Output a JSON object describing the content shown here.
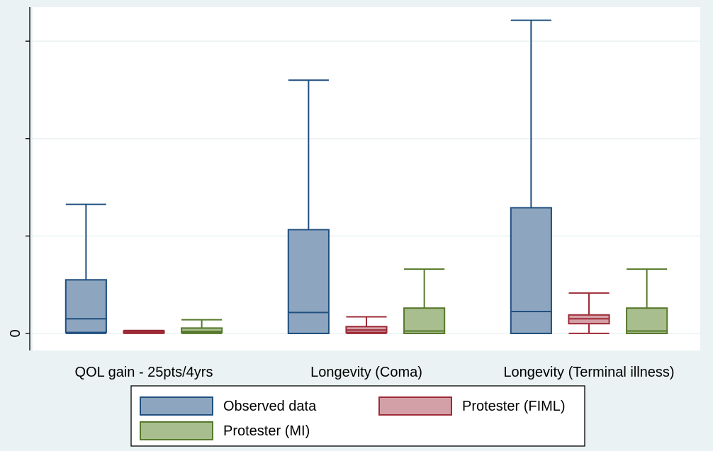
{
  "chart_data": {
    "type": "box",
    "title": "",
    "xlabel": "",
    "ylabel": "",
    "categories": [
      "QOL gain - 25pts/4yrs",
      "Longevity (Coma)",
      "Longevity (Terminal illness)"
    ],
    "y_tick_labels": [
      {
        "value": 0,
        "label": "0"
      },
      {
        "value": 20,
        "label": ""
      },
      {
        "value": 40,
        "label": ""
      },
      {
        "value": 60,
        "label": ""
      }
    ],
    "ylim": [
      -3.5,
      67
    ],
    "grid": true,
    "legend_position": "bottom",
    "series": [
      {
        "name": "Observed data",
        "color": "#8ea5bf",
        "stroke": "#1f4f7f",
        "boxes": [
          {
            "min": 0.0,
            "q1": 0.2,
            "median": 3.0,
            "q3": 11.0,
            "max": 26.5
          },
          {
            "min": 0.0,
            "q1": 0.0,
            "median": 4.3,
            "q3": 21.3,
            "max": 52.0
          },
          {
            "min": 0.0,
            "q1": 0.0,
            "median": 4.5,
            "q3": 25.8,
            "max": 64.3
          }
        ]
      },
      {
        "name": "Protester (FIML)",
        "color": "#d4a0a8",
        "stroke": "#9d2a36",
        "boxes": [
          {
            "min": 0.0,
            "q1": 0.1,
            "median": 0.3,
            "q3": 0.5,
            "max": 0.6
          },
          {
            "min": 0.0,
            "q1": 0.2,
            "median": 0.7,
            "q3": 1.4,
            "max": 3.4
          },
          {
            "min": 0.0,
            "q1": 2.0,
            "median": 3.0,
            "q3": 3.8,
            "max": 8.3
          }
        ]
      },
      {
        "name": "Protester (MI)",
        "color": "#a9be8f",
        "stroke": "#56792b",
        "boxes": [
          {
            "min": 0.0,
            "q1": 0.2,
            "median": 0.4,
            "q3": 1.1,
            "max": 2.8
          },
          {
            "min": 0.0,
            "q1": 0.0,
            "median": 0.5,
            "q3": 5.2,
            "max": 13.2
          },
          {
            "min": 0.0,
            "q1": 0.0,
            "median": 0.5,
            "q3": 5.2,
            "max": 13.2
          }
        ]
      }
    ]
  }
}
